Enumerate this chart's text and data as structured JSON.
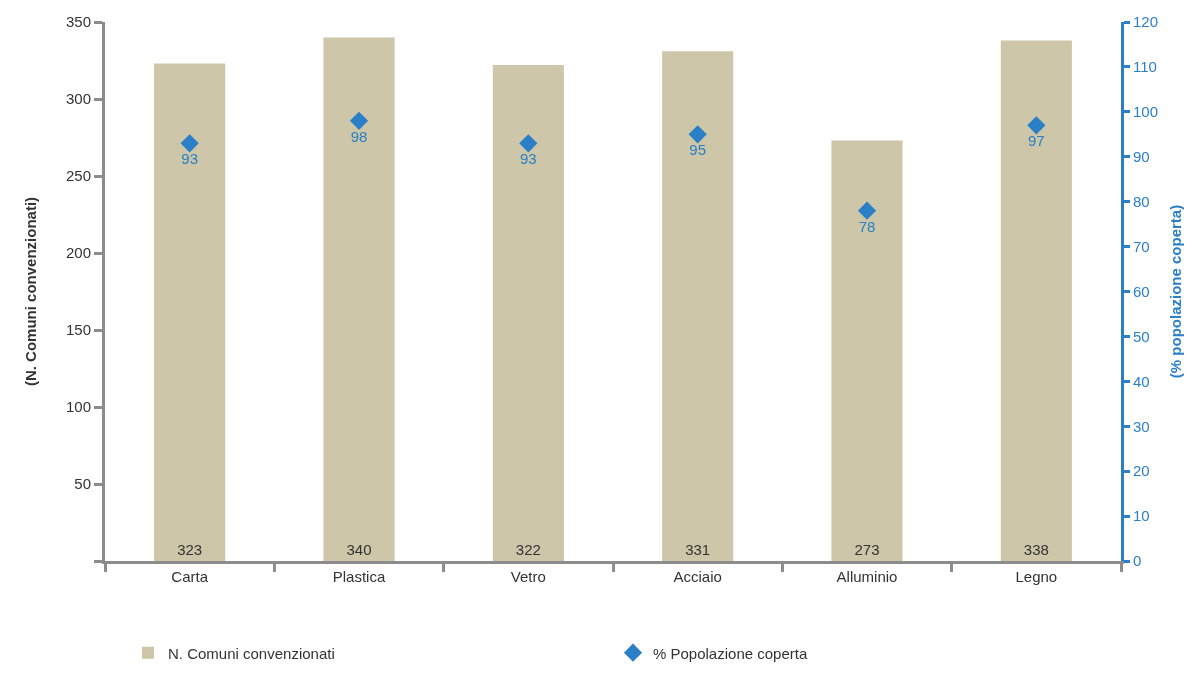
{
  "chart_data": {
    "type": "bar",
    "categories": [
      "Carta",
      "Plastica",
      "Vetro",
      "Acciaio",
      "Alluminio",
      "Legno"
    ],
    "series": [
      {
        "name": "N. Comuni convenzionati",
        "color": "#cdc6a8",
        "values": [
          323,
          340,
          322,
          331,
          273,
          338
        ]
      },
      {
        "name": "% Popolazione coperta",
        "type": "scatter",
        "axis": "y2",
        "color": "#2a7fc6",
        "values": [
          93,
          98,
          93,
          95,
          78,
          97
        ]
      }
    ],
    "ylabel": "(N. Comuni convenzionati)",
    "y2label": "(% popolazione coperta)",
    "ylim": [
      0,
      350
    ],
    "yticks": [
      {
        "value": 0,
        "label": null
      },
      50,
      100,
      150,
      200,
      250,
      300,
      350
    ],
    "y2lim": [
      0,
      120
    ],
    "y2ticks": [
      0,
      10,
      20,
      30,
      40,
      50,
      60,
      70,
      80,
      90,
      100,
      110,
      120
    ],
    "data_labels": true,
    "marker": "diamond",
    "legend": "bottom"
  }
}
